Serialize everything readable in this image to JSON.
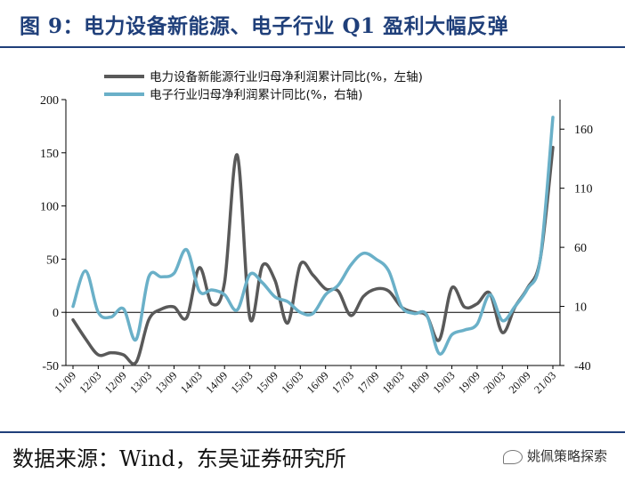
{
  "header": {
    "title": "图 9：电力设备新能源、电子行业 Q1 盈利大幅反弹"
  },
  "footer": {
    "source": "数据来源：Wind，东吴证券研究所",
    "watermark": "姚佩策略探索"
  },
  "chart_data": {
    "type": "line",
    "x_ticks": [
      "11/09",
      "12/03",
      "12/09",
      "13/03",
      "13/09",
      "14/03",
      "14/09",
      "15/03",
      "15/09",
      "16/03",
      "16/09",
      "17/03",
      "17/09",
      "18/03",
      "18/09",
      "19/03",
      "19/09",
      "20/03",
      "20/09",
      "21/03"
    ],
    "y_left": {
      "ticks": [
        -50,
        0,
        50,
        100,
        150,
        200
      ],
      "range": [
        -50,
        200
      ]
    },
    "y_right": {
      "ticks": [
        -40,
        10,
        60,
        110,
        160
      ],
      "range": [
        -40,
        185
      ]
    },
    "grid": false,
    "legend_position": "top",
    "series": [
      {
        "name": "电力设备新能源行业归母净利润累计同比(%，左轴)",
        "axis": "left",
        "color": "#595959",
        "x": [
          "11/09",
          "11/12",
          "12/03",
          "12/06",
          "12/09",
          "12/12",
          "13/03",
          "13/06",
          "13/09",
          "13/12",
          "14/03",
          "14/06",
          "14/09",
          "14/12",
          "15/03",
          "15/06",
          "15/09",
          "15/12",
          "16/03",
          "16/06",
          "16/09",
          "16/12",
          "17/03",
          "17/06",
          "17/09",
          "17/12",
          "18/03",
          "18/06",
          "18/09",
          "18/12",
          "19/03",
          "19/06",
          "19/09",
          "19/12",
          "20/03",
          "20/06",
          "20/09",
          "20/12",
          "21/03"
        ],
        "values": [
          -7,
          -25,
          -40,
          -38,
          -40,
          -47,
          -7,
          3,
          5,
          -5,
          42,
          8,
          28,
          148,
          -5,
          44,
          30,
          -10,
          45,
          35,
          22,
          20,
          -3,
          15,
          22,
          20,
          5,
          0,
          -3,
          -26,
          23,
          5,
          8,
          18,
          -19,
          5,
          23,
          50,
          155
        ]
      },
      {
        "name": "电子行业归母净利润累计同比(%，右轴)",
        "axis": "right",
        "color": "#6ab0c8",
        "x": [
          "11/09",
          "11/12",
          "12/03",
          "12/06",
          "12/09",
          "12/12",
          "13/03",
          "13/06",
          "13/09",
          "13/12",
          "14/03",
          "14/06",
          "14/09",
          "14/12",
          "15/03",
          "15/06",
          "15/09",
          "15/12",
          "16/03",
          "16/06",
          "16/09",
          "16/12",
          "17/03",
          "17/06",
          "17/09",
          "17/12",
          "18/03",
          "18/06",
          "18/09",
          "18/12",
          "19/03",
          "19/06",
          "19/09",
          "19/12",
          "20/03",
          "20/06",
          "20/09",
          "20/12",
          "21/03"
        ],
        "values": [
          10,
          40,
          5,
          1,
          8,
          -18,
          35,
          35,
          38,
          58,
          23,
          24,
          20,
          7,
          37,
          30,
          18,
          14,
          5,
          4,
          20,
          28,
          45,
          55,
          50,
          40,
          10,
          4,
          3,
          -30,
          -14,
          -10,
          -5,
          20,
          -2,
          10,
          25,
          50,
          170
        ]
      }
    ]
  }
}
